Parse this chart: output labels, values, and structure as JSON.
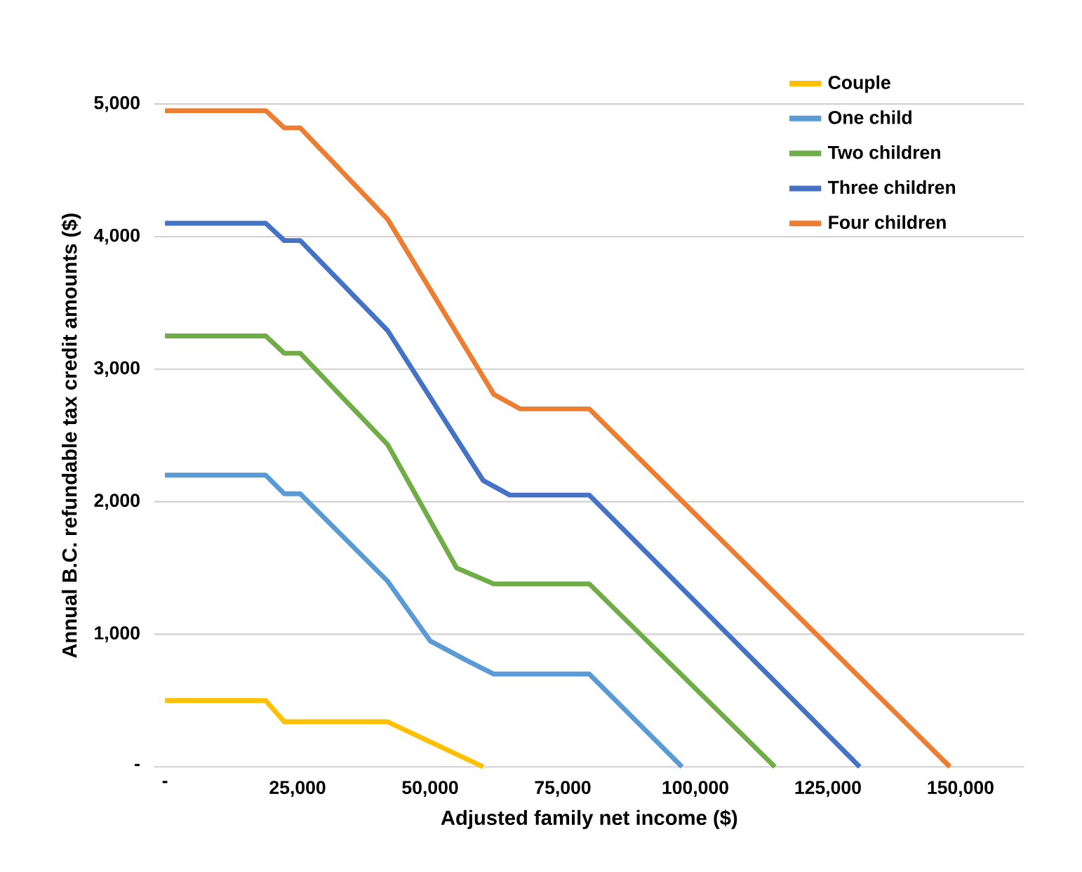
{
  "chart_data": {
    "type": "line",
    "xlabel": "Adjusted family net income ($)",
    "ylabel": "Annual B.C. refundable tax credit  amounts ($)",
    "series": [
      {
        "name": "Couple",
        "color": "#ffc000",
        "x": [
          0,
          19000,
          22500,
          42000,
          60000
        ],
        "values": [
          500,
          500,
          340,
          340,
          0
        ]
      },
      {
        "name": "One child",
        "color": "#5b9bd5",
        "x": [
          0,
          19000,
          22500,
          25500,
          42000,
          50000,
          57000,
          62000,
          80000,
          97500
        ],
        "values": [
          2200,
          2200,
          2060,
          2060,
          1400,
          950,
          800,
          700,
          700,
          0
        ]
      },
      {
        "name": "Two children",
        "color": "#70ad47",
        "x": [
          0,
          19000,
          22500,
          25500,
          42000,
          55000,
          62000,
          80000,
          115000
        ],
        "values": [
          3250,
          3250,
          3120,
          3120,
          2430,
          1500,
          1380,
          1380,
          0
        ]
      },
      {
        "name": "Three children",
        "color": "#4472c4",
        "x": [
          0,
          19000,
          22500,
          25500,
          42000,
          60000,
          65000,
          80000,
          131000
        ],
        "values": [
          4100,
          4100,
          3970,
          3970,
          3290,
          2160,
          2050,
          2050,
          0
        ]
      },
      {
        "name": "Four children",
        "color": "#ed7d31",
        "x": [
          0,
          19000,
          22500,
          25500,
          42000,
          62000,
          67000,
          80000,
          148000
        ],
        "values": [
          4950,
          4950,
          4820,
          4820,
          4130,
          2810,
          2700,
          2700,
          0
        ]
      }
    ],
    "xlim": [
      -2000,
      162000
    ],
    "ylim": [
      0,
      5000
    ],
    "xticks": [
      {
        "value": 0,
        "label": "-"
      },
      {
        "value": 25000,
        "label": "25,000"
      },
      {
        "value": 50000,
        "label": "50,000"
      },
      {
        "value": 75000,
        "label": "75,000"
      },
      {
        "value": 100000,
        "label": "100,000"
      },
      {
        "value": 125000,
        "label": "125,000"
      },
      {
        "value": 150000,
        "label": "150,000"
      }
    ],
    "yticks": [
      {
        "value": 0,
        "label": "-"
      },
      {
        "value": 1000,
        "label": "1,000"
      },
      {
        "value": 2000,
        "label": "2,000"
      },
      {
        "value": 3000,
        "label": "3,000"
      },
      {
        "value": 4000,
        "label": "4,000"
      },
      {
        "value": 5000,
        "label": "5,000"
      }
    ],
    "grid": "y",
    "legend": "top right",
    "marker": "none",
    "line_style": "solid"
  }
}
